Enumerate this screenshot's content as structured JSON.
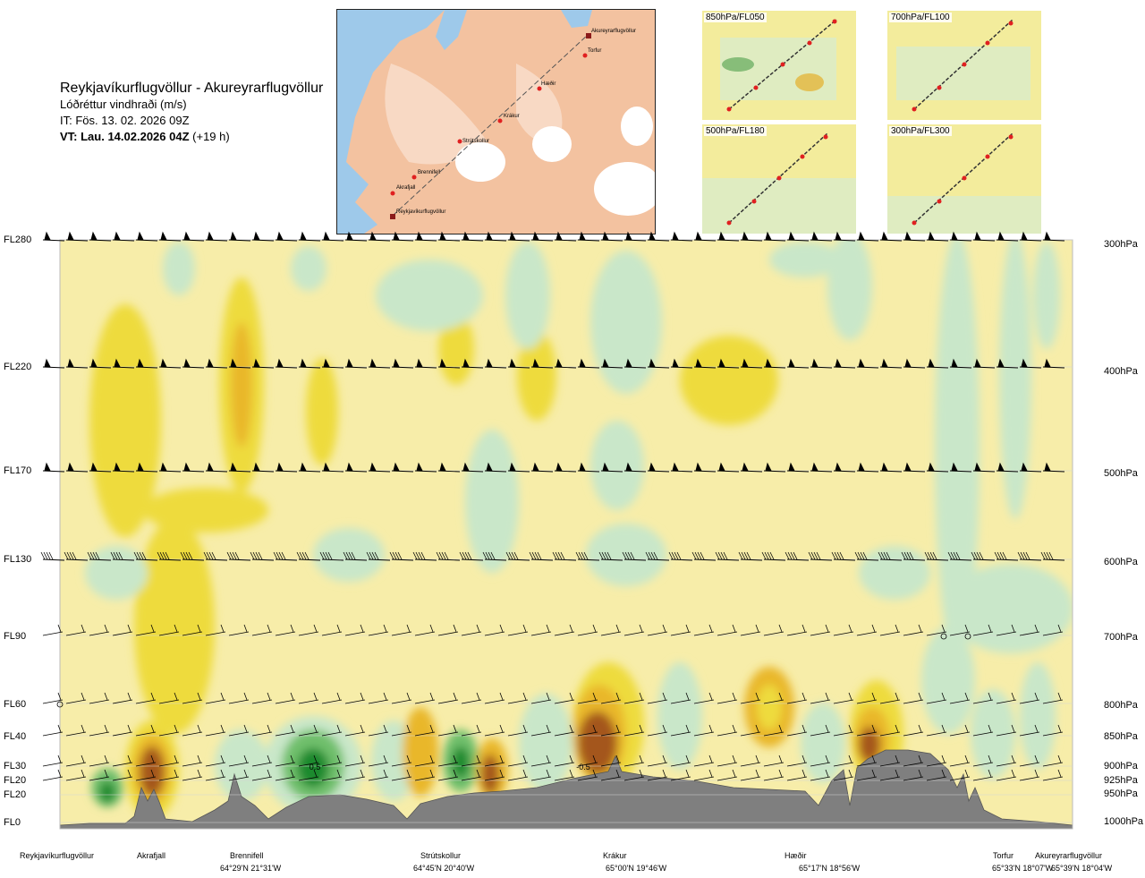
{
  "header": {
    "route": "Reykjavíkurflugvöllur - Akureyrarflugvöllur",
    "variable": "Lóðréttur vindhraði (m/s)",
    "issue_time": "IT: Fös. 13. 02. 2026 09Z",
    "valid_time_bold": "VT: Lau. 14.02.2026 04Z",
    "valid_offset": "(+19 h)"
  },
  "map": {
    "places": [
      "Akureyrarflugvöllur",
      "Torfur",
      "Hæðir",
      "Krákur",
      "Strútskollur",
      "Brennifell",
      "Akrafjall",
      "Reykjavíkurflugvöllur"
    ]
  },
  "thumbnails": [
    {
      "label": "850hPa/FL050"
    },
    {
      "label": "700hPa/FL100"
    },
    {
      "label": "500hPa/FL180"
    },
    {
      "label": "300hPa/FL300"
    }
  ],
  "chart_data": {
    "type": "heatmap",
    "title": "Reykjavíkurflugvöllur - Akureyrarflugvöllur",
    "subtitle": "Lóðréttur vindhraði (m/s)",
    "y_left_labels": [
      "FL280",
      "FL220",
      "FL170",
      "FL130",
      "FL90",
      "FL60",
      "FL40",
      "FL30",
      "FL20",
      "FL20",
      "FL0"
    ],
    "y_right_labels": [
      "300hPa",
      "400hPa",
      "500hPa",
      "600hPa",
      "700hPa",
      "800hPa",
      "850hPa",
      "900hPa",
      "925hPa",
      "950hPa",
      "1000hPa"
    ],
    "pressure_levels_hpa": [
      300,
      400,
      500,
      600,
      700,
      800,
      850,
      900,
      925,
      950,
      1000
    ],
    "contour_annotations": [
      "0.5",
      "-0.5"
    ],
    "colors": {
      "strong_sink": "#1e8a2e",
      "sink": "#6fbf6c",
      "weak_sink": "#c9e7c9",
      "neutral": "#f7eda9",
      "weak_rise": "#eedb3c",
      "rise": "#e9b72c",
      "strong_rise": "#a4561a",
      "terrain": "#7f7f7f"
    },
    "x_locations": [
      {
        "name": "Reykjavíkurflugvöllur",
        "coord": ""
      },
      {
        "name": "Akrafjall",
        "coord": ""
      },
      {
        "name": "Brennifell",
        "coord": "64°29'N 21°31'W"
      },
      {
        "name": "Strútskollur",
        "coord": "64°45'N 20°40'W"
      },
      {
        "name": "Krákur",
        "coord": "65°00'N 19°46'W"
      },
      {
        "name": "Hæðir",
        "coord": "65°17'N 18°56'W"
      },
      {
        "name": "Torfur",
        "coord": "65°33'N 18°07'W"
      },
      {
        "name": "Akureyrarflugvöllur",
        "coord": "65°39'N 18°04'W"
      }
    ]
  }
}
